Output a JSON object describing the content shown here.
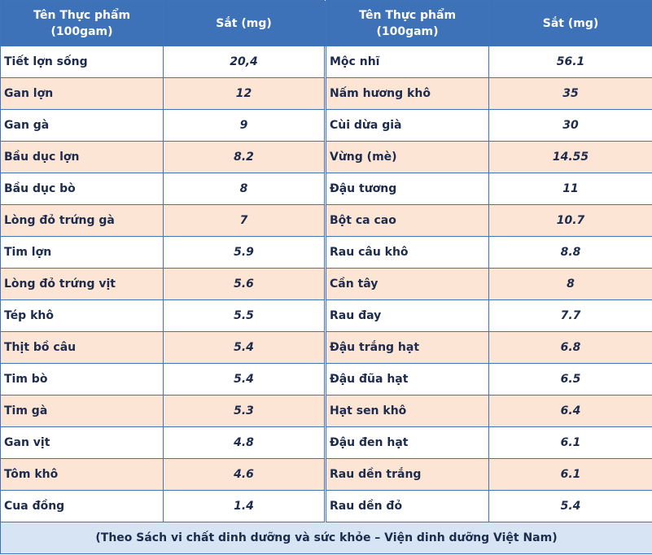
{
  "table": {
    "header": [
      [
        "Tên Thực phẩm",
        "(100gam)"
      ],
      [
        "Sắt (mg)"
      ],
      [
        "Tên Thực phẩm",
        "(100gam)"
      ],
      [
        "Sắt (mg)"
      ]
    ],
    "rows": [
      [
        "Tiết lợn sống",
        "20,4",
        "Mộc nhĩ",
        "56.1"
      ],
      [
        "Gan lợn",
        "12",
        "Nấm hương khô",
        "35"
      ],
      [
        "Gan gà",
        "9",
        "Cùi dừa già",
        "30"
      ],
      [
        "Bầu dục lợn",
        "8.2",
        "Vừng (mè)",
        "14.55"
      ],
      [
        "Bầu dục bò",
        "8",
        "Đậu tương",
        "11"
      ],
      [
        "Lòng đỏ trứng gà",
        "7",
        "Bột ca cao",
        "10.7"
      ],
      [
        "Tim lợn",
        "5.9",
        "Rau câu khô",
        "8.8"
      ],
      [
        "Lòng đỏ trứng vịt",
        "5.6",
        "Cần tây",
        "8"
      ],
      [
        "Tép khô",
        "5.5",
        "Rau đay",
        "7.7"
      ],
      [
        "Thịt bồ câu",
        "5.4",
        "Đậu trắng hạt",
        "6.8"
      ],
      [
        "Tim bò",
        "5.4",
        "Đậu đũa hạt",
        "6.5"
      ],
      [
        "Tim gà",
        "5.3",
        "Hạt sen khô",
        "6.4"
      ],
      [
        "Gan vịt",
        "4.8",
        "Đậu đen hạt",
        "6.1"
      ],
      [
        "Tôm khô",
        "4.6",
        "Rau dền trắng",
        "6.1"
      ],
      [
        "Cua đồng",
        "1.4",
        "Rau dền đỏ",
        "5.4"
      ]
    ],
    "footer": "(Theo Sách vi chất dinh dưỡng và sức khỏe – Viện dinh dưỡng Việt Nam)"
  }
}
